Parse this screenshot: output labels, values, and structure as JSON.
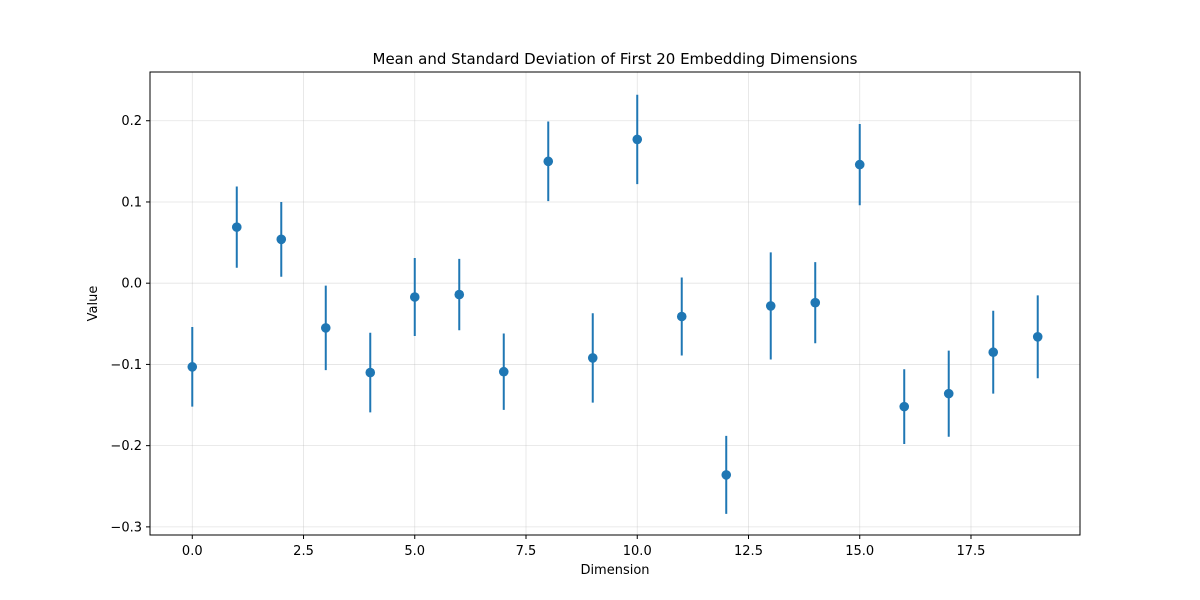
{
  "chart_data": {
    "type": "scatter",
    "title": "Mean and Standard Deviation of First 20 Embedding Dimensions",
    "xlabel": "Dimension",
    "ylabel": "Value",
    "xlim": [
      -0.95,
      19.95
    ],
    "ylim": [
      -0.31,
      0.26
    ],
    "xticks": [
      0.0,
      2.5,
      5.0,
      7.5,
      10.0,
      12.5,
      15.0,
      17.5
    ],
    "xtick_labels": [
      "0.0",
      "2.5",
      "5.0",
      "7.5",
      "10.0",
      "12.5",
      "15.0",
      "17.5"
    ],
    "yticks": [
      -0.3,
      -0.2,
      -0.1,
      0.0,
      0.1,
      0.2
    ],
    "ytick_labels": [
      "−0.3",
      "−0.2",
      "−0.1",
      "0.0",
      "0.1",
      "0.2"
    ],
    "grid": true,
    "color": "#1f77b4",
    "series": [
      {
        "x": [
          0,
          1,
          2,
          3,
          4,
          5,
          6,
          7,
          8,
          9,
          10,
          11,
          12,
          13,
          14,
          15,
          16,
          17,
          18,
          19
        ],
        "mean": [
          -0.103,
          0.069,
          0.054,
          -0.055,
          -0.11,
          -0.017,
          -0.014,
          -0.109,
          0.15,
          -0.092,
          0.177,
          -0.041,
          -0.236,
          -0.028,
          -0.024,
          0.146,
          -0.152,
          -0.136,
          -0.085,
          -0.066
        ],
        "std": [
          0.049,
          0.05,
          0.046,
          0.052,
          0.049,
          0.048,
          0.044,
          0.047,
          0.049,
          0.055,
          0.055,
          0.048,
          0.048,
          0.066,
          0.05,
          0.05,
          0.046,
          0.053,
          0.051,
          0.051
        ]
      }
    ]
  }
}
